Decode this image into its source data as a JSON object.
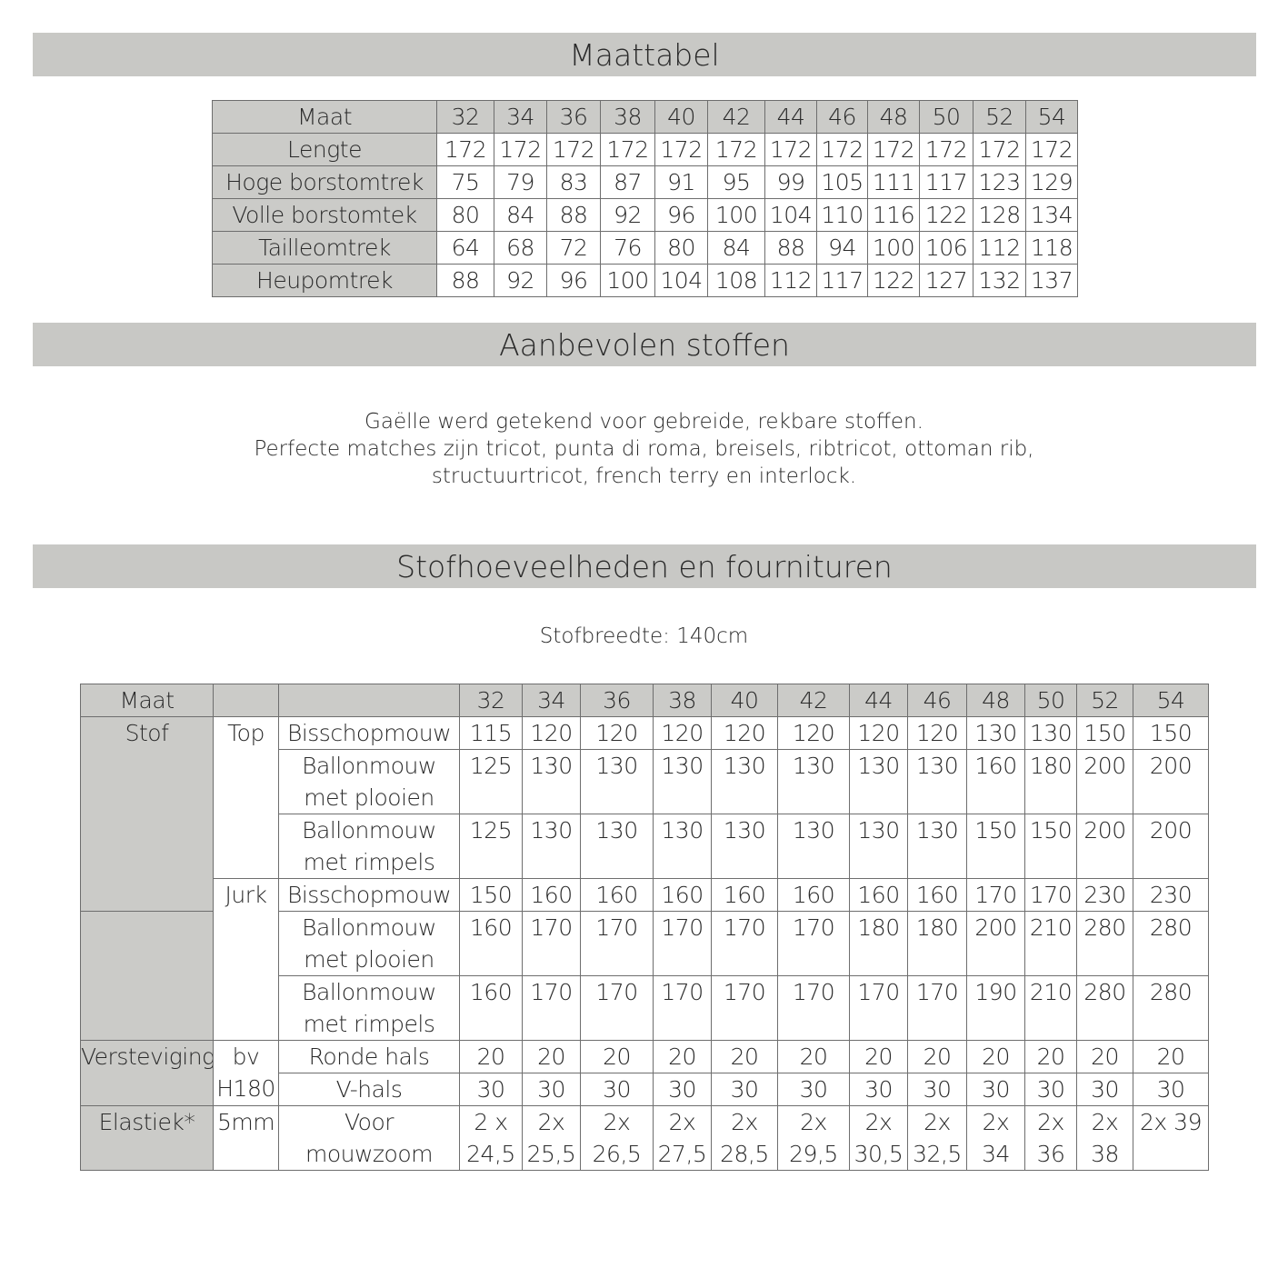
{
  "headings": [
    "Maattabel",
    "Aanbevolen stoffen",
    "Stofhoeveelheden en fournituren"
  ],
  "size_table": {
    "header": "Maat",
    "sizes": [
      32,
      34,
      36,
      38,
      40,
      42,
      44,
      46,
      48,
      50,
      52,
      54
    ],
    "rows": [
      {
        "label": "Lengte",
        "values": [
          172,
          172,
          172,
          172,
          172,
          172,
          172,
          172,
          172,
          172,
          172,
          172
        ]
      },
      {
        "label": "Hoge borstomtrek",
        "values": [
          75,
          79,
          83,
          87,
          91,
          95,
          99,
          105,
          111,
          117,
          123,
          129
        ]
      },
      {
        "label": "Volle borstomtek",
        "values": [
          80,
          84,
          88,
          92,
          96,
          100,
          104,
          110,
          116,
          122,
          128,
          134
        ]
      },
      {
        "label": "Tailleomtrek",
        "values": [
          64,
          68,
          72,
          76,
          80,
          84,
          88,
          94,
          100,
          106,
          112,
          118
        ]
      },
      {
        "label": "Heupomtrek",
        "values": [
          88,
          92,
          96,
          100,
          104,
          108,
          112,
          117,
          122,
          127,
          132,
          137
        ]
      }
    ]
  },
  "fabrics_text": [
    "Gaëlle werd getekend voor gebreide, rekbare stoffen.",
    "Perfecte matches zijn tricot, punta di roma, breisels, ribtricot, ottoman rib,",
    "structuurtricot, french terry en interlock."
  ],
  "fabric_width": "Stofbreedte: 140cm",
  "amounts_table": {
    "header": "Maat",
    "sizes": [
      32,
      34,
      36,
      38,
      40,
      42,
      44,
      46,
      48,
      50,
      52,
      54
    ],
    "groups": [
      "Stof",
      "Versteviging",
      "Elastiek*"
    ],
    "subgroups": [
      "Top",
      "Jurk",
      "bv H180",
      "5mm"
    ],
    "rows": [
      {
        "label": "Bisschopmouw",
        "values": [
          115,
          120,
          120,
          120,
          120,
          120,
          120,
          120,
          130,
          130,
          150,
          150
        ]
      },
      {
        "label": "Ballonmouw met plooien",
        "values": [
          125,
          130,
          130,
          130,
          130,
          130,
          130,
          130,
          160,
          180,
          200,
          200
        ]
      },
      {
        "label": "Ballonmouw met rimpels",
        "values": [
          125,
          130,
          130,
          130,
          130,
          130,
          130,
          130,
          150,
          150,
          200,
          200
        ]
      },
      {
        "label": "Bisschopmouw",
        "values": [
          150,
          160,
          160,
          160,
          160,
          160,
          160,
          160,
          170,
          170,
          230,
          230
        ]
      },
      {
        "label": "Ballonmouw met plooien",
        "values": [
          160,
          170,
          170,
          170,
          170,
          170,
          180,
          180,
          200,
          210,
          280,
          280
        ]
      },
      {
        "label": "Ballonmouw met rimpels",
        "values": [
          160,
          170,
          170,
          170,
          170,
          170,
          170,
          170,
          190,
          210,
          280,
          280
        ]
      },
      {
        "label": "Ronde hals",
        "values": [
          20,
          20,
          20,
          20,
          20,
          20,
          20,
          20,
          20,
          20,
          20,
          20
        ]
      },
      {
        "label": "V-hals",
        "values": [
          30,
          30,
          30,
          30,
          30,
          30,
          30,
          30,
          30,
          30,
          30,
          30
        ]
      },
      {
        "label": "Voor mouwzoom",
        "values": [
          "2 x 24,5",
          "2x 25,5",
          "2x 26,5",
          "2x 27,5",
          "2x 28,5",
          "2x 29,5",
          "2x 30,5",
          "2x 32,5",
          "2x 34",
          "2x 36",
          "2x 38",
          "2x 39"
        ]
      }
    ]
  }
}
